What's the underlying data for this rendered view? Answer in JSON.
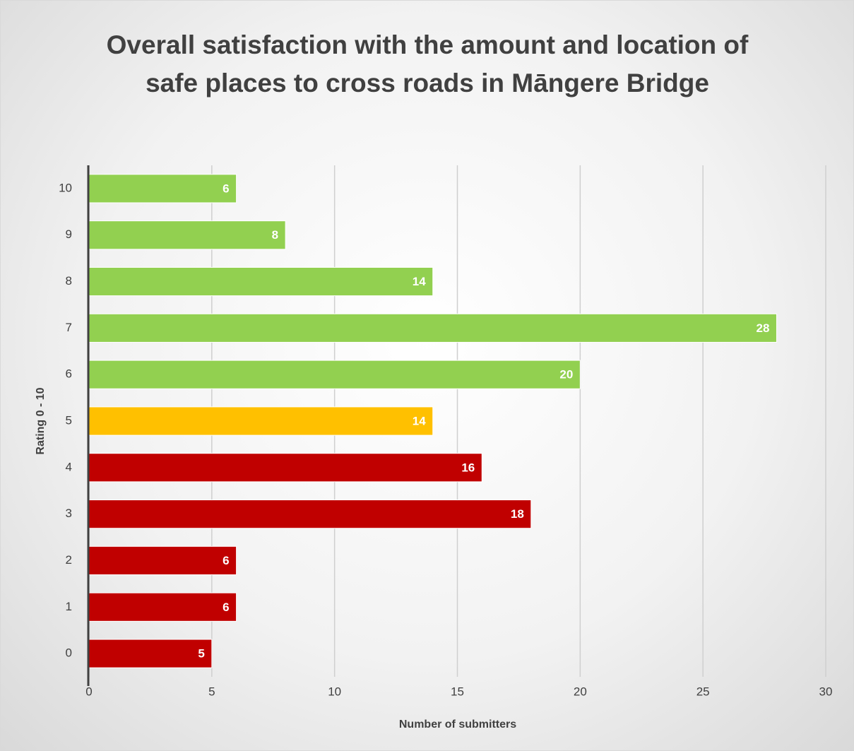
{
  "chart_data": {
    "type": "hbar",
    "title": "Overall satisfaction with the amount and location of safe places to cross roads in Māngere Bridge",
    "x_label": "Number of submitters",
    "y_label": "Rating 0 - 10",
    "categories": [
      "0",
      "1",
      "2",
      "3",
      "4",
      "5",
      "6",
      "7",
      "8",
      "9",
      "10"
    ],
    "values": [
      5,
      6,
      6,
      18,
      16,
      14,
      20,
      28,
      14,
      8,
      6
    ],
    "colors": [
      "#c00000",
      "#c00000",
      "#c00000",
      "#c00000",
      "#c00000",
      "#ffc000",
      "#92d050",
      "#92d050",
      "#92d050",
      "#92d050",
      "#92d050"
    ],
    "xlim": [
      0,
      30
    ],
    "xticks": [
      0,
      5,
      10,
      15,
      20,
      25,
      30
    ],
    "grid": true
  }
}
